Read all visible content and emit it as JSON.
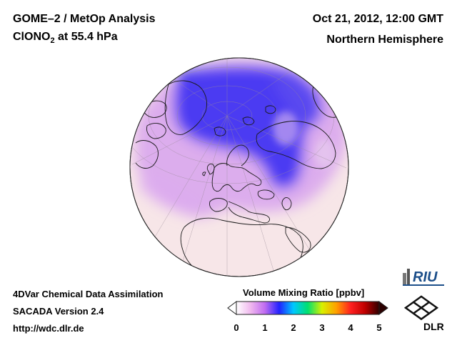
{
  "header": {
    "title": "GOME–2 / MetOp Analysis",
    "species_prefix": "ClONO",
    "species_sub": "2",
    "species_suffix": " at 55.4 hPa",
    "datetime": "Oct 21, 2012, 12:00 GMT",
    "hemisphere": "Northern Hemisphere"
  },
  "footer": {
    "line1": "4DVar Chemical Data Assimilation",
    "line2": "SACADA Version 2.4",
    "line3": "http://wdc.dlr.de"
  },
  "colorbar": {
    "title": "Volume Mixing Ratio [ppbv]",
    "ticks": [
      "0",
      "1",
      "2",
      "3",
      "4",
      "5"
    ],
    "min": 0,
    "max": 5,
    "colors": [
      "#ffffff",
      "#f0b8ee",
      "#c06cf0",
      "#2222ff",
      "#00c8ff",
      "#00e070",
      "#d8f000",
      "#ffa000",
      "#ff2020",
      "#c00000",
      "#300000"
    ]
  },
  "logos": {
    "riu": "RIU",
    "dlr": "DLR"
  },
  "colors": {
    "globe_base": "#f7e6e8",
    "low_value": "#4a3cf0",
    "mid_value": "#d9a6ee"
  },
  "map": {
    "projection": "orthographic",
    "field": "ClONO2 volume mixing ratio",
    "pressure_level": "55.4 hPa"
  }
}
